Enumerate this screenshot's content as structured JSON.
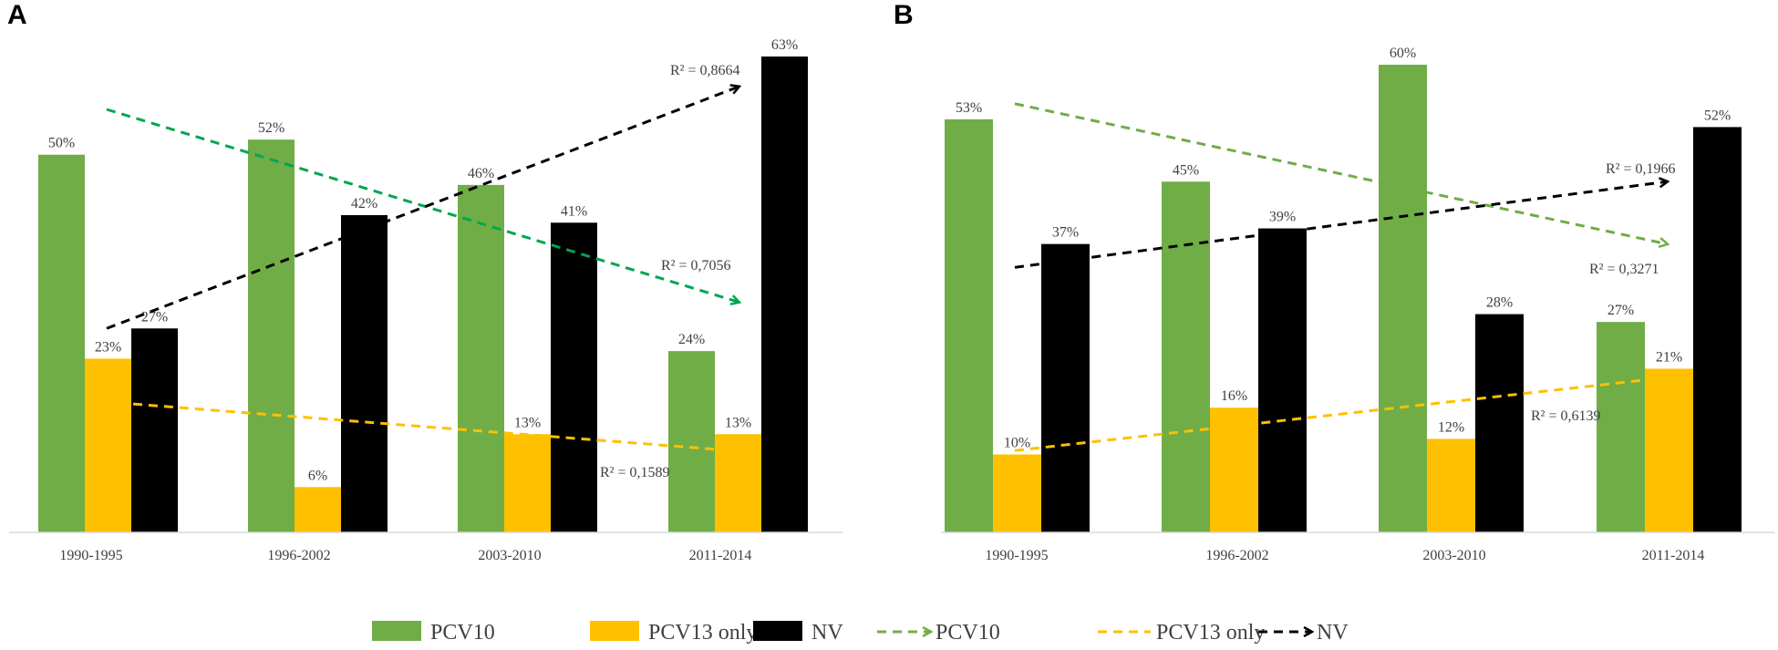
{
  "colors": {
    "pcv10": "#70ad47",
    "pcv13": "#ffc000",
    "nv": "#000000",
    "trend_pcv10_a": "#00a651",
    "trend_pcv10_b": "#70ad47",
    "trend_pcv13": "#ffc000",
    "trend_nv": "#000000"
  },
  "chart_data": [
    {
      "panel": "A",
      "type": "bar",
      "categories": [
        "1990-1995",
        "1996-2002",
        "2003-2010",
        "2011-2014"
      ],
      "ylim": [
        0,
        63
      ],
      "series": [
        {
          "name": "PCV10",
          "values": [
            50,
            52,
            46,
            24
          ],
          "labels": [
            "50%",
            "52%",
            "46%",
            "24%"
          ]
        },
        {
          "name": "PCV13 only",
          "values": [
            23,
            6,
            13,
            13
          ],
          "labels": [
            "23%",
            "6%",
            "13%",
            "13%"
          ]
        },
        {
          "name": "NV",
          "values": [
            27,
            42,
            41,
            63
          ],
          "labels": [
            "27%",
            "42%",
            "41%",
            "63%"
          ]
        }
      ],
      "trendlines": [
        {
          "series": "PCV10",
          "start": 56,
          "end": 30.5,
          "r2": "R² = 0,7056"
        },
        {
          "series": "PCV13 only",
          "start": 17,
          "end": 11,
          "r2": "R² = 0,1589"
        },
        {
          "series": "NV",
          "start": 27,
          "end": 59,
          "r2": "R² = 0,8664"
        }
      ]
    },
    {
      "panel": "B",
      "type": "bar",
      "categories": [
        "1990-1995",
        "1996-2002",
        "2003-2010",
        "2011-2014"
      ],
      "ylim": [
        0,
        60
      ],
      "series": [
        {
          "name": "PCV10",
          "values": [
            53,
            45,
            60,
            27
          ],
          "labels": [
            "53%",
            "45%",
            "60%",
            "27%"
          ]
        },
        {
          "name": "PCV13 only",
          "values": [
            10,
            16,
            12,
            21
          ],
          "labels": [
            "10%",
            "16%",
            "12%",
            "21%"
          ]
        },
        {
          "name": "NV",
          "values": [
            37,
            39,
            28,
            52
          ],
          "labels": [
            "37%",
            "39%",
            "28%",
            "52%"
          ]
        }
      ],
      "trendlines": [
        {
          "series": "PCV10",
          "start": 55,
          "end": 37,
          "r2": "R² = 0,3271"
        },
        {
          "series": "PCV13 only",
          "start": 10.5,
          "end": 19.5,
          "r2": "R² = 0,6139"
        },
        {
          "series": "NV",
          "start": 34,
          "end": 45,
          "r2": "R² = 0,1966"
        }
      ]
    }
  ],
  "legend": {
    "items": [
      {
        "label": "PCV10",
        "kind": "box",
        "color": "#70ad47"
      },
      {
        "label": "PCV13 only",
        "kind": "box",
        "color": "#ffc000"
      },
      {
        "label": "NV",
        "kind": "box",
        "color": "#000000"
      },
      {
        "label": "PCV10",
        "kind": "arrow",
        "color": "#70ad47"
      },
      {
        "label": "PCV13 only",
        "kind": "arrow",
        "color": "#ffc000"
      },
      {
        "label": "NV",
        "kind": "arrow",
        "color": "#000000"
      }
    ]
  }
}
